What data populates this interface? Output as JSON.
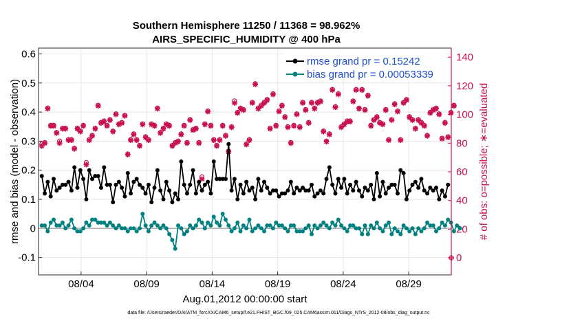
{
  "chart_data": {
    "type": "line",
    "title_line1": "Southern Hemisphere 11250 / 11368 = 98.962%",
    "title_line2": "AIRS_SPECIFIC_HUMIDITY @ 400 hPa",
    "xlabel": "Aug.01,2012 00:00:00 start",
    "ylabel": "rmse and bias (model - observation)",
    "y2label": "# of obs: o=possible; ∗=evaluated",
    "footnote": "data file: /Users/raeder/DAI/ATM_forcXX/CAM6_setup/f.e21.FHIST_BGC.f09_025.CAM6assim.011/Diags_NTrS_2012-08/obs_diag_output.nc",
    "xlim": [
      0.75,
      32.25
    ],
    "ylim": [
      -0.16,
      0.62
    ],
    "y2lim": [
      -11.9,
      146.3
    ],
    "x_ticks": [
      {
        "x": 4,
        "label": "08/04"
      },
      {
        "x": 9,
        "label": "08/09"
      },
      {
        "x": 14,
        "label": "08/14"
      },
      {
        "x": 19,
        "label": "08/19"
      },
      {
        "x": 24,
        "label": "08/24"
      },
      {
        "x": 29,
        "label": "08/29"
      }
    ],
    "y_ticks": [
      {
        "v": -0.1,
        "label": "-0.1"
      },
      {
        "v": 0,
        "label": "0"
      },
      {
        "v": 0.1,
        "label": "0.1"
      },
      {
        "v": 0.2,
        "label": "0.2"
      },
      {
        "v": 0.3,
        "label": "0.3"
      },
      {
        "v": 0.4,
        "label": "0.4"
      },
      {
        "v": 0.5,
        "label": "0.5"
      },
      {
        "v": 0.6,
        "label": "0.6"
      }
    ],
    "y2_ticks": [
      {
        "v": 0,
        "label": "0"
      },
      {
        "v": 20,
        "label": "20"
      },
      {
        "v": 40,
        "label": "40"
      },
      {
        "v": 60,
        "label": "60"
      },
      {
        "v": 80,
        "label": "80"
      },
      {
        "v": 100,
        "label": "100"
      },
      {
        "v": 120,
        "label": "120"
      },
      {
        "v": 140,
        "label": "140"
      }
    ],
    "legend": [
      {
        "label": "rmse grand pr = 0.15242",
        "color": "#000000"
      },
      {
        "label": "bias grand pr = 0.00053339",
        "color": "#008080"
      }
    ],
    "series": [
      {
        "name": "rmse",
        "color": "#000000",
        "values": [
          0.18,
          0.12,
          0.16,
          0.11,
          0.17,
          0.13,
          0.14,
          0.15,
          0.15,
          0.16,
          0.13,
          0.21,
          0.14,
          0.2,
          0.17,
          0.1,
          0.2,
          0.17,
          0.18,
          0.18,
          0.14,
          0.21,
          0.15,
          0.15,
          0.09,
          0.15,
          0.16,
          0.14,
          0.11,
          0.19,
          0.12,
          0.16,
          0.17,
          0.15,
          0.14,
          0.12,
          0.15,
          0.09,
          0.14,
          0.2,
          0.13,
          0.1,
          0.16,
          0.13,
          0.09,
          0.12,
          0.1,
          0.23,
          0.15,
          0.12,
          0.15,
          0.2,
          0.12,
          0.16,
          0.13,
          0.15,
          0.16,
          0.12,
          0.23,
          0.17,
          0.17,
          0.17,
          0.17,
          0.29,
          0.13,
          0.17,
          0.1,
          0.15,
          0.12,
          0.16,
          0.13,
          0.14,
          0.1,
          0.17,
          0.13,
          0.16,
          0.14,
          0.12,
          0.13,
          0.13,
          0.11,
          0.12,
          0.12,
          0.13,
          0.16,
          0.12,
          0.14,
          0.13,
          0.14,
          0.13,
          0.13,
          0.15,
          0.11,
          0.12,
          0.13,
          0.12,
          0.17,
          0.21,
          0.15,
          0.12,
          0.17,
          0.14,
          0.17,
          0.12,
          0.15,
          0.13,
          0.16,
          0.13,
          0.11,
          0.14,
          0.13,
          0.15,
          0.1,
          0.19,
          0.11,
          0.16,
          0.12,
          0.14,
          0.15,
          0.15,
          0.12,
          0.2,
          0.19,
          0.1,
          0.13,
          0.15,
          0.16,
          0.14,
          0.17,
          0.13,
          0.12,
          0.14,
          0.13,
          0.14,
          0.1,
          0.13,
          0.11,
          0.15
        ]
      },
      {
        "name": "bias",
        "color": "#008080",
        "values": [
          0.01,
          0.01,
          -0.01,
          0.02,
          0.03,
          0.01,
          0.01,
          0.02,
          0.0,
          0.01,
          0.03,
          0.0,
          -0.01,
          -0.01,
          0.0,
          0.02,
          0.01,
          0.03,
          0.03,
          0.02,
          0.02,
          0.02,
          0.01,
          0.02,
          0.01,
          0.0,
          0.01,
          0.0,
          0.0,
          -0.01,
          0.0,
          0.0,
          -0.01,
          0.0,
          0.05,
          0.01,
          -0.01,
          0.01,
          0.02,
          0.01,
          0.0,
          0.01,
          0.0,
          -0.02,
          -0.04,
          -0.07,
          0.01,
          0.0,
          -0.02,
          -0.01,
          0.01,
          0.0,
          0.01,
          0.03,
          0.02,
          0.0,
          0.02,
          0.01,
          0.04,
          0.02,
          0.01,
          0.05,
          0.03,
          0.01,
          -0.01,
          0.0,
          0.02,
          -0.01,
          0.01,
          0.0,
          0.03,
          -0.01,
          0.0,
          0.01,
          0.0,
          -0.01,
          0.01,
          0.01,
          0.0,
          0.02,
          0.01,
          0.01,
          0.0,
          -0.01,
          0.01,
          0.01,
          -0.01,
          -0.01,
          -0.01,
          0.0,
          0.01,
          -0.02,
          0.01,
          0.0,
          0.01,
          0.02,
          0.01,
          0.0,
          0.02,
          0.01,
          0.03,
          0.01,
          0.0,
          -0.01,
          0.01,
          0.01,
          0.0,
          0.0,
          -0.02,
          0.01,
          -0.02,
          0.01,
          0.0,
          0.02,
          0.0,
          -0.01,
          0.01,
          0.02,
          -0.02,
          0.0,
          -0.01,
          -0.02,
          0.01,
          0.0,
          -0.01,
          0.0,
          -0.02,
          0.0,
          -0.01,
          0.0,
          0.02,
          0.01,
          0.01,
          -0.01,
          0.0,
          0.02,
          0.01,
          0.03,
          0.02,
          -0.01,
          0.01,
          0.0
        ]
      },
      {
        "name": "obs possible",
        "marker": "o",
        "color": "#c8104e",
        "values": [
          79,
          80,
          104,
          92,
          92,
          87,
          81,
          90,
          90,
          82,
          82,
          76,
          90,
          88,
          92,
          66,
          82,
          85,
          90,
          106,
          94,
          95,
          92,
          96,
          88,
          100,
          93,
          94,
          99,
          72,
          82,
          86,
          82,
          78,
          93,
          84,
          82,
          93,
          92,
          104,
          87,
          90,
          93,
          92,
          78,
          80,
          81,
          86,
          92,
          80,
          96,
          89,
          90,
          80,
          56,
          93,
          102,
          92,
          82,
          78,
          82,
          92,
          85,
          74,
          91,
          109,
          101,
          104,
          103,
          79,
          82,
          108,
          121,
          104,
          106,
          108,
          110,
          90,
          114,
          92,
          102,
          106,
          98,
          91,
          80,
          92,
          100,
          91,
          108,
          103,
          94,
          108,
          104,
          108,
          109,
          88,
          81,
          86,
          117,
          105,
          114,
          91,
          93,
          95,
          95,
          109,
          117,
          104,
          117,
          103,
          113,
          92,
          96,
          98,
          94,
          93,
          103,
          82,
          96,
          107,
          102,
          82,
          108,
          110,
          98,
          96,
          90,
          96,
          94,
          92,
          85,
          101,
          103,
          104,
          100,
          83,
          94,
          84,
          101,
          106
        ]
      },
      {
        "name": "obs evaluated",
        "marker": "*",
        "color": "#c8104e",
        "values": [
          78,
          80,
          104,
          92,
          92,
          87,
          80,
          90,
          90,
          82,
          82,
          76,
          90,
          88,
          92,
          65,
          82,
          85,
          90,
          106,
          94,
          95,
          92,
          96,
          88,
          100,
          93,
          94,
          99,
          72,
          82,
          86,
          82,
          78,
          93,
          84,
          82,
          93,
          92,
          104,
          87,
          90,
          93,
          92,
          78,
          80,
          81,
          86,
          92,
          80,
          96,
          89,
          90,
          80,
          55,
          93,
          102,
          92,
          82,
          78,
          82,
          92,
          85,
          74,
          91,
          108,
          101,
          104,
          103,
          79,
          82,
          108,
          121,
          104,
          106,
          108,
          110,
          90,
          114,
          92,
          102,
          106,
          98,
          91,
          80,
          92,
          100,
          91,
          108,
          103,
          94,
          108,
          104,
          108,
          109,
          88,
          81,
          86,
          117,
          105,
          114,
          91,
          93,
          95,
          95,
          109,
          117,
          104,
          117,
          103,
          113,
          92,
          96,
          98,
          94,
          93,
          103,
          82,
          96,
          107,
          102,
          82,
          108,
          110,
          98,
          96,
          90,
          96,
          94,
          92,
          85,
          101,
          103,
          104,
          100,
          83,
          94,
          84,
          101,
          106
        ]
      }
    ]
  }
}
